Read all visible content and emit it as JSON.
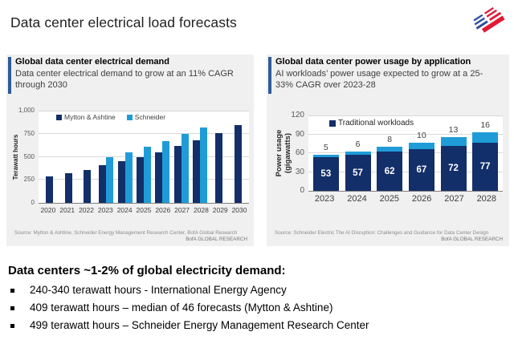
{
  "page": {
    "title": "Data center electrical load forecasts"
  },
  "panels": {
    "left": {
      "heading": "Global data center electrical demand",
      "subheading": "Data center electrical demand to grow at an 11% CAGR through 2030",
      "source": "Source:  Mytton & Ashtine, Schneider Energy Management Research Center, BofA Global Research",
      "brand": "BofA GLOBAL RESEARCH"
    },
    "right": {
      "heading": "Global data center power usage by application",
      "subheading": "AI workloads’ power usage expected to grow at a 25-33% CAGR over 2023-28",
      "source": "Source:  Schneider Electric The AI Disruption: Challenges and Guidance for Data Center Design",
      "brand": "BofA GLOBAL RESEARCH"
    }
  },
  "chart_data": [
    {
      "type": "bar",
      "title": "Global data center electrical demand",
      "ylabel": "Terawatt hours",
      "xlabel": "",
      "ylim": [
        0,
        1000
      ],
      "yticks": [
        "0",
        "250",
        "500",
        "750",
        "1,000"
      ],
      "grid": true,
      "legend_position": "top-left-inside",
      "categories": [
        "2020",
        "2021",
        "2022",
        "2023",
        "2024",
        "2025",
        "2026",
        "2027",
        "2028",
        "2029",
        "2030"
      ],
      "series": [
        {
          "name": "Mytton & Ashtine",
          "color": "#132f6a",
          "values": [
            290,
            325,
            360,
            405,
            450,
            495,
            550,
            615,
            680,
            760,
            845
          ]
        },
        {
          "name": "Schneider",
          "color": "#1f9cd8",
          "values": [
            null,
            null,
            null,
            500,
            545,
            605,
            670,
            745,
            815,
            null,
            null
          ]
        }
      ]
    },
    {
      "type": "stacked-bar",
      "title": "Global data center power usage by application",
      "ylabel": "Power usage (gigawatts)",
      "xlabel": "",
      "ylim": [
        0,
        120
      ],
      "yticks": [
        "0",
        "30",
        "60",
        "90",
        "120"
      ],
      "grid": true,
      "legend_position": "top-left-inside",
      "categories": [
        "2023",
        "2024",
        "2025",
        "2026",
        "2027",
        "2028"
      ],
      "series": [
        {
          "name": "Traditional workloads",
          "color": "#132f6a",
          "labels": "inside",
          "in_legend": true,
          "values": [
            53,
            57,
            62,
            67,
            72,
            77
          ]
        },
        {
          "name": "AI workloads",
          "color": "#1f9cd8",
          "labels": "above",
          "in_legend": false,
          "values": [
            5,
            6,
            8,
            10,
            13,
            16
          ]
        }
      ]
    }
  ],
  "summary": {
    "heading": "Data centers ~1-2% of global electricity demand:",
    "bullets": [
      "240-340 terawatt hours - International Energy Agency",
      "409 terawatt hours – median of 46 forecasts (Mytton & Ashtine)",
      "499 terawatt hours – Schneider Energy Management Research Center"
    ]
  },
  "colors": {
    "accent_bar": "#2f5b9b",
    "panel_bg": "#f0f0f0",
    "navy": "#132f6a",
    "light_blue": "#1f9cd8",
    "logo_blue": "#2b4d9e",
    "logo_red": "#e31837"
  }
}
